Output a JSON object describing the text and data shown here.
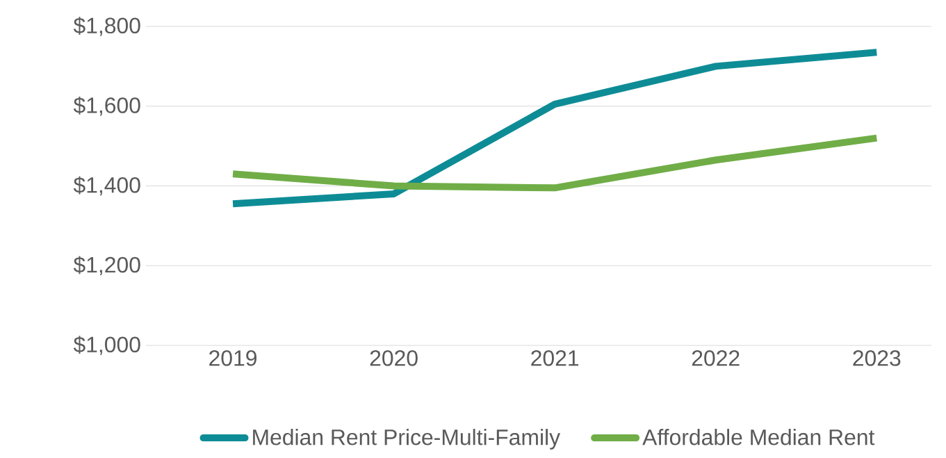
{
  "chart_data": {
    "type": "line",
    "categories": [
      "2019",
      "2020",
      "2021",
      "2022",
      "2023"
    ],
    "series": [
      {
        "name": "Median Rent Price-Multi-Family",
        "color": "#0e8c96",
        "values": [
          1355,
          1380,
          1605,
          1700,
          1735
        ]
      },
      {
        "name": "Affordable Median Rent",
        "color": "#70ad47",
        "values": [
          1430,
          1400,
          1395,
          1465,
          1520
        ]
      }
    ],
    "ylim": [
      1000,
      1800
    ],
    "yticks": [
      {
        "value": 1000,
        "label": "$1,000"
      },
      {
        "value": 1200,
        "label": "$1,200"
      },
      {
        "value": 1400,
        "label": "$1,400"
      },
      {
        "value": 1600,
        "label": "$1,600"
      },
      {
        "value": 1800,
        "label": "$1,800"
      }
    ],
    "grid": "y",
    "legend": "bottom",
    "marker": "none",
    "line_style": "solid"
  }
}
